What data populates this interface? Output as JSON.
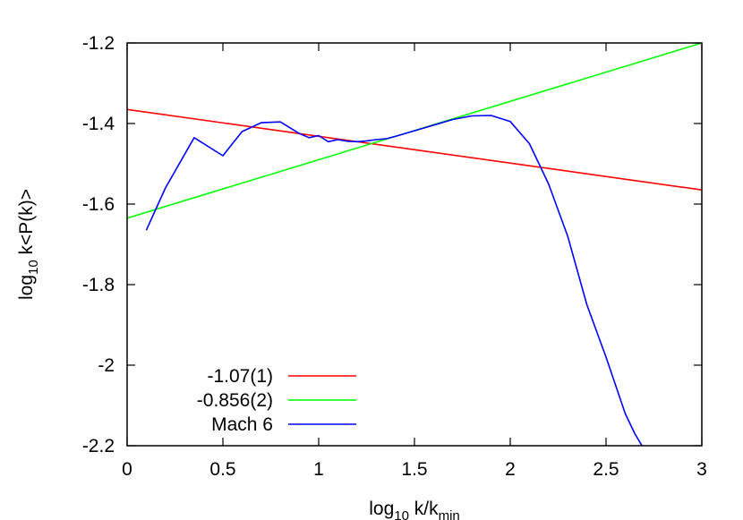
{
  "chart_data": {
    "type": "line",
    "title": "",
    "xlabel": {
      "base": "log",
      "sub": "10",
      "mid": " k/k",
      "sub2": "min"
    },
    "ylabel": {
      "base": "log",
      "sub": "10",
      "rest": " k<P(k)>"
    },
    "xlim": [
      0,
      3
    ],
    "ylim": [
      -2.2,
      -1.2
    ],
    "x_ticks": [
      "0",
      "0.5",
      "1",
      "1.5",
      "2",
      "2.5",
      "3"
    ],
    "y_ticks": [
      "-1.2",
      "-1.4",
      "-1.6",
      "-1.8",
      "-2",
      "-2.2"
    ],
    "grid": false,
    "legend_position": "bottom-left",
    "series": [
      {
        "name": "-1.07(1)",
        "color": "#ff0000",
        "kind": "fit",
        "x": [
          0,
          3
        ],
        "y": [
          -1.365,
          -1.565
        ]
      },
      {
        "name": "-0.856(2)",
        "color": "#00ff00",
        "kind": "fit",
        "x": [
          0,
          3
        ],
        "y": [
          -1.635,
          -1.2
        ]
      },
      {
        "name": "Mach 6",
        "color": "#0000ff",
        "kind": "data",
        "x": [
          0.1,
          0.2,
          0.35,
          0.5,
          0.6,
          0.7,
          0.8,
          0.9,
          0.95,
          1.0,
          1.05,
          1.1,
          1.15,
          1.2,
          1.25,
          1.3,
          1.35,
          1.4,
          1.5,
          1.6,
          1.7,
          1.8,
          1.9,
          2.0,
          2.1,
          2.2,
          2.3,
          2.4,
          2.5,
          2.6,
          2.65,
          2.7
        ],
        "y": [
          -1.665,
          -1.56,
          -1.435,
          -1.48,
          -1.42,
          -1.398,
          -1.396,
          -1.425,
          -1.435,
          -1.43,
          -1.445,
          -1.44,
          -1.444,
          -1.445,
          -1.443,
          -1.44,
          -1.438,
          -1.432,
          -1.418,
          -1.404,
          -1.39,
          -1.381,
          -1.38,
          -1.395,
          -1.45,
          -1.55,
          -1.68,
          -1.85,
          -1.98,
          -2.12,
          -2.17,
          -2.21
        ]
      }
    ]
  }
}
